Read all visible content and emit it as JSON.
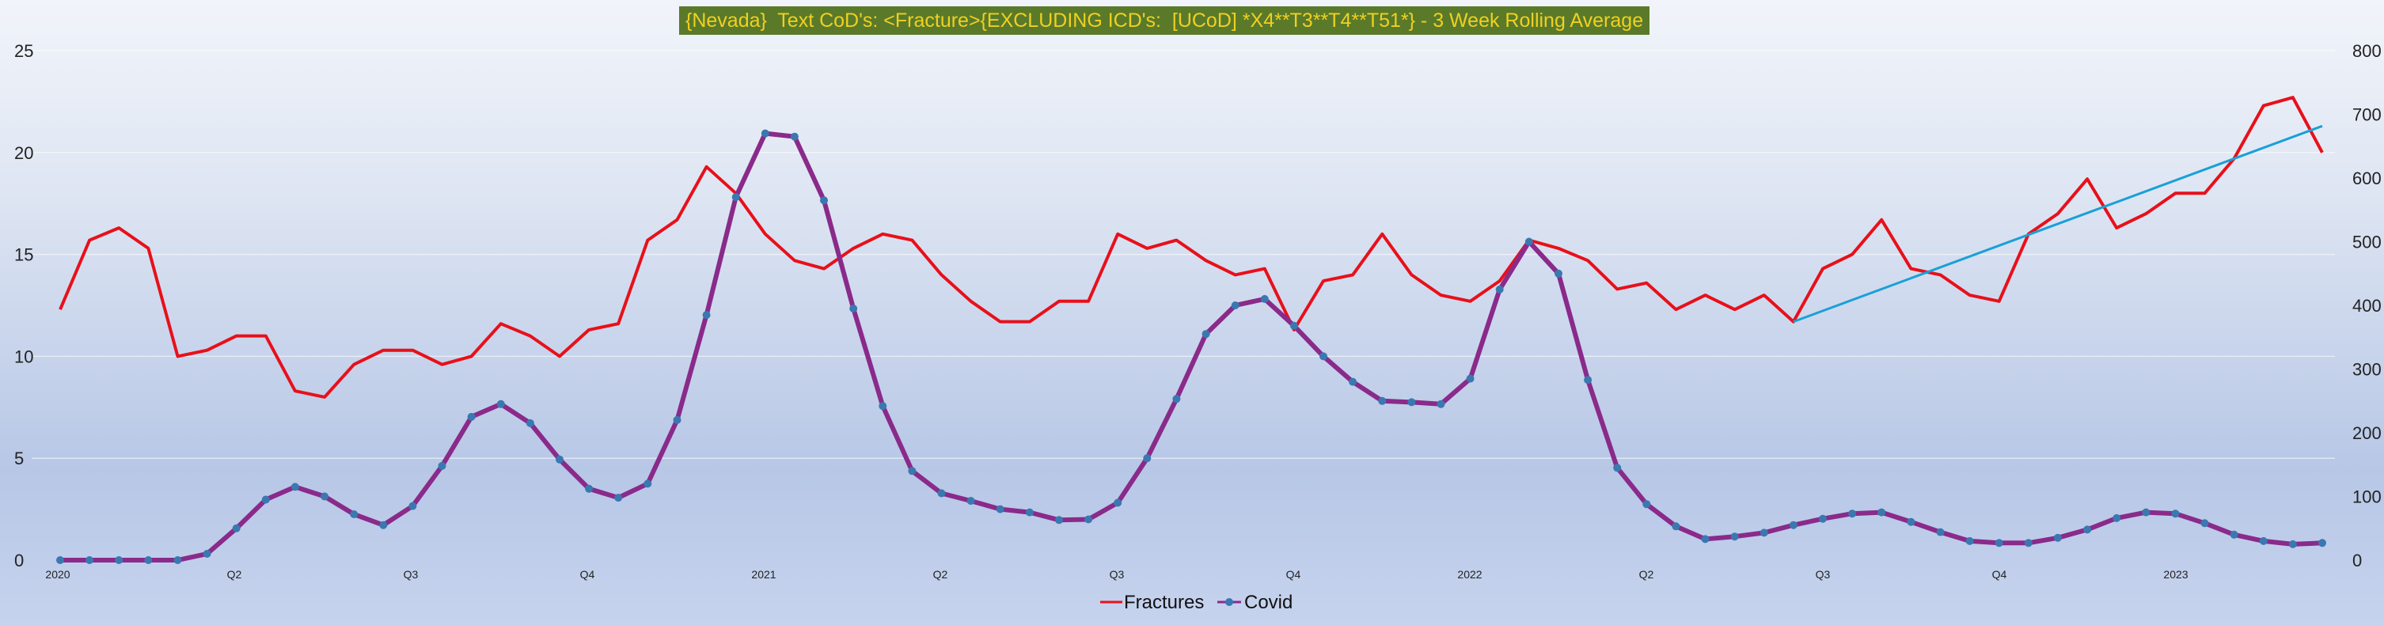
{
  "chart_data": {
    "type": "line",
    "title": "{Nevada}  Text CoD's: <Fracture>{EXCLUDING ICD's:  [UCoD] *X4**T3**T4**T51*} - 3 Week Rolling Average",
    "x_tick_labels": [
      "2020",
      "Q2",
      "Q3",
      "Q4",
      "2021",
      "Q2",
      "Q3",
      "Q4",
      "2022",
      "Q2",
      "Q3",
      "Q4",
      "2023"
    ],
    "y_left": {
      "range": [
        0,
        25
      ],
      "ticks": [
        0,
        5,
        10,
        15,
        20,
        25
      ]
    },
    "y_right": {
      "range": [
        0,
        800
      ],
      "ticks": [
        0,
        100,
        200,
        300,
        400,
        500,
        600,
        700,
        800
      ]
    },
    "grid": true,
    "legend_position": "bottom-center",
    "series": [
      {
        "name": "Fractures",
        "axis": "left",
        "color": "#e8101a",
        "values": [
          12.3,
          15.7,
          16.3,
          15.3,
          10.0,
          10.3,
          11.0,
          11.0,
          8.3,
          8.0,
          9.6,
          10.3,
          10.3,
          9.6,
          10.0,
          11.6,
          11.0,
          10.0,
          11.3,
          11.6,
          15.7,
          16.7,
          19.3,
          18.0,
          16.0,
          14.7,
          14.3,
          15.3,
          16.0,
          15.7,
          14.0,
          12.7,
          11.7,
          11.7,
          12.7,
          12.7,
          16.0,
          15.3,
          15.7,
          14.7,
          14.0,
          14.3,
          11.3,
          13.7,
          14.0,
          16.0,
          14.0,
          13.0,
          12.7,
          13.7,
          15.7,
          15.3,
          14.7,
          13.3,
          13.6,
          12.3,
          13.0,
          12.3,
          13.0,
          11.7,
          14.3,
          15.0,
          16.7,
          14.3,
          14.0,
          13.0,
          12.7,
          16.0,
          17.0,
          18.7,
          16.3,
          17.0,
          18.0,
          18.0,
          19.7,
          22.3,
          22.7,
          20.0
        ]
      },
      {
        "name": "Covid",
        "axis": "right",
        "color": "#8a2a8a",
        "marker_color": "#3a78b0",
        "values": [
          0,
          0,
          0,
          0,
          0,
          10,
          50,
          95,
          115,
          100,
          72,
          55,
          85,
          148,
          225,
          245,
          215,
          158,
          112,
          98,
          120,
          220,
          385,
          570,
          670,
          665,
          565,
          395,
          242,
          140,
          105,
          93,
          80,
          75,
          63,
          64,
          90,
          160,
          253,
          355,
          400,
          410,
          368,
          320,
          280,
          250,
          248,
          245,
          285,
          425,
          500,
          450,
          283,
          145,
          88,
          53,
          33,
          37,
          43,
          55,
          65,
          73,
          75,
          60,
          44,
          30,
          27,
          27,
          35,
          48,
          66,
          75,
          73,
          58,
          40,
          30,
          25,
          27
        ]
      },
      {
        "name": "Trend",
        "axis": "left",
        "color": "#1aa0d8",
        "style": "trendline",
        "from_index": 59,
        "from_value": 11.7,
        "to_index": 77,
        "to_value": 21.3
      }
    ]
  },
  "legend": {
    "fractures": "Fractures",
    "covid": "Covid"
  }
}
